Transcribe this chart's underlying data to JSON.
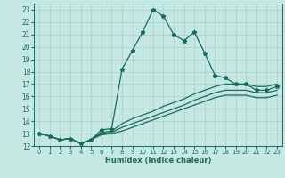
{
  "xlabel": "Humidex (Indice chaleur)",
  "bg_color": "#c5e8e2",
  "line_color": "#1a6b5a",
  "grid_color": "#a8cfc8",
  "xlim": [
    -0.5,
    23.5
  ],
  "ylim": [
    12,
    23.5
  ],
  "xtick_labels": [
    "0",
    "1",
    "2",
    "3",
    "4",
    "5",
    "6",
    "7",
    "8",
    "9",
    "10",
    "11",
    "12",
    "13",
    "14",
    "15",
    "16",
    "17",
    "18",
    "19",
    "20",
    "21",
    "22",
    "23"
  ],
  "xticks": [
    0,
    1,
    2,
    3,
    4,
    5,
    6,
    7,
    8,
    9,
    10,
    11,
    12,
    13,
    14,
    15,
    16,
    17,
    18,
    19,
    20,
    21,
    22,
    23
  ],
  "yticks": [
    12,
    13,
    14,
    15,
    16,
    17,
    18,
    19,
    20,
    21,
    22,
    23
  ],
  "ytick_labels": [
    "12",
    "13",
    "14",
    "15",
    "16",
    "17",
    "18",
    "19",
    "20",
    "21",
    "22",
    "23"
  ],
  "line1": {
    "x": [
      0,
      1,
      2,
      3,
      4,
      5,
      6,
      7,
      8,
      9,
      10,
      11,
      12,
      13,
      14,
      15,
      16,
      17,
      18,
      19,
      20,
      21,
      22,
      23
    ],
    "y": [
      13,
      12.8,
      12.5,
      12.6,
      12.2,
      12.5,
      13.3,
      13.4,
      18.2,
      19.7,
      21.2,
      23.0,
      22.5,
      21.0,
      20.5,
      21.2,
      19.5,
      17.7,
      17.5,
      17.0,
      17.0,
      16.5,
      16.5,
      16.8
    ]
  },
  "line2": {
    "x": [
      0,
      1,
      2,
      3,
      4,
      5,
      6,
      7,
      8,
      9,
      10,
      11,
      12,
      13,
      14,
      15,
      16,
      17,
      18,
      19,
      20,
      21,
      22,
      23
    ],
    "y": [
      13,
      12.8,
      12.5,
      12.6,
      12.2,
      12.5,
      13.1,
      13.2,
      13.8,
      14.2,
      14.5,
      14.8,
      15.2,
      15.5,
      15.8,
      16.2,
      16.5,
      16.8,
      17.0,
      17.0,
      17.0,
      16.8,
      16.8,
      17.0
    ]
  },
  "line3": {
    "x": [
      0,
      1,
      2,
      3,
      4,
      5,
      6,
      7,
      8,
      9,
      10,
      11,
      12,
      13,
      14,
      15,
      16,
      17,
      18,
      19,
      20,
      21,
      22,
      23
    ],
    "y": [
      13,
      12.8,
      12.5,
      12.6,
      12.2,
      12.5,
      13.0,
      13.1,
      13.5,
      13.8,
      14.1,
      14.4,
      14.7,
      15.0,
      15.3,
      15.7,
      16.0,
      16.3,
      16.5,
      16.5,
      16.5,
      16.3,
      16.3,
      16.5
    ]
  },
  "line4": {
    "x": [
      0,
      1,
      2,
      3,
      4,
      5,
      6,
      7,
      8,
      9,
      10,
      11,
      12,
      13,
      14,
      15,
      16,
      17,
      18,
      19,
      20,
      21,
      22,
      23
    ],
    "y": [
      13,
      12.8,
      12.5,
      12.6,
      12.2,
      12.5,
      12.9,
      13.0,
      13.2,
      13.5,
      13.8,
      14.1,
      14.4,
      14.7,
      15.0,
      15.3,
      15.6,
      15.9,
      16.1,
      16.1,
      16.1,
      15.9,
      15.9,
      16.1
    ]
  }
}
